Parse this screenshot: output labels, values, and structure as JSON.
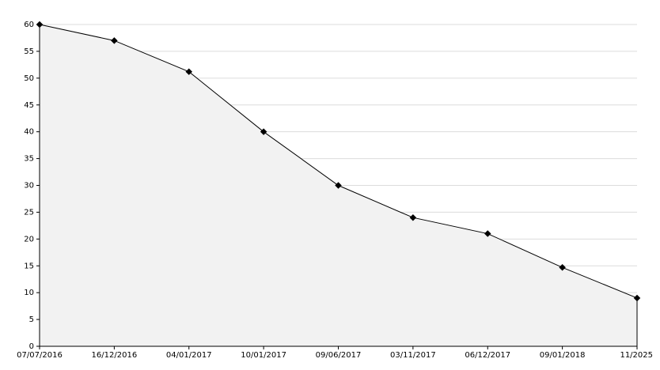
{
  "chart_data": {
    "type": "area",
    "categories": [
      "07/07/2016",
      "16/12/2016",
      "04/01/2017",
      "10/01/2017",
      "09/06/2017",
      "03/11/2017",
      "06/12/2017",
      "09/01/2018",
      "11/2025"
    ],
    "values": [
      60,
      57,
      51.2,
      40,
      30,
      24,
      21,
      14.7,
      9
    ],
    "color": "#000000",
    "fill_color": "#f2f2f2",
    "ylim": [
      0,
      60
    ],
    "yticks": [
      0,
      5,
      10,
      15,
      20,
      25,
      30,
      35,
      40,
      45,
      50,
      55,
      60
    ],
    "grid": true
  }
}
